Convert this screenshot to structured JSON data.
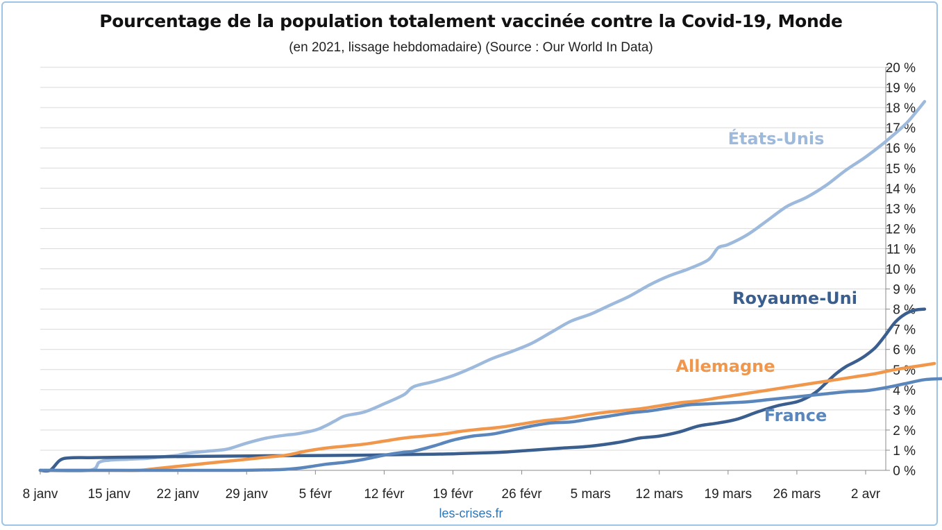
{
  "footer": "les-crises.fr",
  "chart_data": {
    "type": "line",
    "title": "Pourcentage de la population totalement vaccinée contre la Covid-19, Monde",
    "subtitle": "(en 2021, lissage hebdomadaire) (Source : Our World In Data)",
    "x_unit": "day of 2021",
    "x_ticks": [
      {
        "x": 8,
        "label": "8 janv"
      },
      {
        "x": 15,
        "label": "15 janv"
      },
      {
        "x": 22,
        "label": "22 janv"
      },
      {
        "x": 29,
        "label": "29 janv"
      },
      {
        "x": 36,
        "label": "5 févr"
      },
      {
        "x": 43,
        "label": "12 févr"
      },
      {
        "x": 50,
        "label": "19 févr"
      },
      {
        "x": 57,
        "label": "26 févr"
      },
      {
        "x": 64,
        "label": "5 mars"
      },
      {
        "x": 71,
        "label": "12 mars"
      },
      {
        "x": 78,
        "label": "19 mars"
      },
      {
        "x": 85,
        "label": "26 mars"
      },
      {
        "x": 92,
        "label": "2 avr"
      }
    ],
    "xlim": [
      8,
      94.5
    ],
    "ylim": [
      0,
      20
    ],
    "y_ticks": [
      0,
      1,
      2,
      3,
      4,
      5,
      6,
      7,
      8,
      9,
      10,
      11,
      12,
      13,
      14,
      15,
      16,
      17,
      18,
      19,
      20
    ],
    "y_tick_suffix": " %",
    "y_axis_side": "right",
    "grid": "horizontal",
    "series": [
      {
        "name": "États-Unis",
        "color": "#9DB9DC",
        "points": [
          [
            8,
            0
          ],
          [
            13,
            0
          ],
          [
            14,
            0.4
          ],
          [
            15,
            0.5
          ],
          [
            17,
            0.55
          ],
          [
            19,
            0.6
          ],
          [
            21,
            0.7
          ],
          [
            22,
            0.75
          ],
          [
            23,
            0.85
          ],
          [
            25,
            0.95
          ],
          [
            27,
            1.05
          ],
          [
            29,
            1.35
          ],
          [
            31,
            1.6
          ],
          [
            33,
            1.75
          ],
          [
            34,
            1.8
          ],
          [
            36,
            2.0
          ],
          [
            37,
            2.2
          ],
          [
            38,
            2.45
          ],
          [
            39,
            2.7
          ],
          [
            41,
            2.9
          ],
          [
            43,
            3.3
          ],
          [
            45,
            3.75
          ],
          [
            46,
            4.15
          ],
          [
            48,
            4.4
          ],
          [
            50,
            4.7
          ],
          [
            52,
            5.1
          ],
          [
            54,
            5.55
          ],
          [
            56,
            5.9
          ],
          [
            58,
            6.3
          ],
          [
            60,
            6.85
          ],
          [
            62,
            7.4
          ],
          [
            64,
            7.75
          ],
          [
            66,
            8.2
          ],
          [
            68,
            8.65
          ],
          [
            70,
            9.2
          ],
          [
            72,
            9.65
          ],
          [
            74,
            10.0
          ],
          [
            76,
            10.45
          ],
          [
            77,
            11.05
          ],
          [
            78,
            11.2
          ],
          [
            80,
            11.7
          ],
          [
            82,
            12.4
          ],
          [
            84,
            13.1
          ],
          [
            86,
            13.55
          ],
          [
            88,
            14.15
          ],
          [
            90,
            14.9
          ],
          [
            92,
            15.55
          ],
          [
            94,
            16.3
          ],
          [
            96,
            17.15
          ],
          [
            97,
            17.7
          ],
          [
            98,
            18.3
          ]
        ]
      },
      {
        "name": "Royaume-Uni",
        "color": "#3A5F8F",
        "points": [
          [
            8,
            0
          ],
          [
            9,
            0
          ],
          [
            10,
            0.5
          ],
          [
            11,
            0.62
          ],
          [
            13,
            0.63
          ],
          [
            16,
            0.65
          ],
          [
            20,
            0.67
          ],
          [
            25,
            0.7
          ],
          [
            30,
            0.72
          ],
          [
            35,
            0.73
          ],
          [
            40,
            0.75
          ],
          [
            45,
            0.78
          ],
          [
            48,
            0.8
          ],
          [
            50,
            0.82
          ],
          [
            52,
            0.85
          ],
          [
            55,
            0.9
          ],
          [
            58,
            1.0
          ],
          [
            61,
            1.1
          ],
          [
            64,
            1.2
          ],
          [
            67,
            1.4
          ],
          [
            69,
            1.6
          ],
          [
            71,
            1.7
          ],
          [
            73,
            1.9
          ],
          [
            75,
            2.2
          ],
          [
            77,
            2.35
          ],
          [
            79,
            2.55
          ],
          [
            81,
            2.9
          ],
          [
            83,
            3.2
          ],
          [
            85,
            3.4
          ],
          [
            86,
            3.6
          ],
          [
            87,
            3.9
          ],
          [
            88,
            4.35
          ],
          [
            89,
            4.8
          ],
          [
            90,
            5.15
          ],
          [
            91,
            5.4
          ],
          [
            92,
            5.7
          ],
          [
            93,
            6.1
          ],
          [
            94,
            6.7
          ],
          [
            95,
            7.35
          ],
          [
            96,
            7.75
          ],
          [
            97,
            7.95
          ],
          [
            98,
            8.0
          ]
        ]
      },
      {
        "name": "Allemagne",
        "color": "#F0974C",
        "points": [
          [
            8,
            0
          ],
          [
            15,
            0
          ],
          [
            18,
            0
          ],
          [
            20,
            0.1
          ],
          [
            22,
            0.2
          ],
          [
            25,
            0.35
          ],
          [
            28,
            0.5
          ],
          [
            31,
            0.65
          ],
          [
            33,
            0.75
          ],
          [
            35,
            0.95
          ],
          [
            37,
            1.1
          ],
          [
            39,
            1.2
          ],
          [
            41,
            1.3
          ],
          [
            43,
            1.45
          ],
          [
            45,
            1.6
          ],
          [
            47,
            1.7
          ],
          [
            49,
            1.8
          ],
          [
            51,
            1.95
          ],
          [
            53,
            2.05
          ],
          [
            55,
            2.15
          ],
          [
            57,
            2.3
          ],
          [
            59,
            2.45
          ],
          [
            61,
            2.55
          ],
          [
            63,
            2.7
          ],
          [
            65,
            2.85
          ],
          [
            67,
            2.95
          ],
          [
            69,
            3.05
          ],
          [
            71,
            3.2
          ],
          [
            73,
            3.35
          ],
          [
            75,
            3.45
          ],
          [
            77,
            3.6
          ],
          [
            79,
            3.75
          ],
          [
            81,
            3.9
          ],
          [
            83,
            4.05
          ],
          [
            85,
            4.2
          ],
          [
            87,
            4.35
          ],
          [
            89,
            4.5
          ],
          [
            91,
            4.65
          ],
          [
            93,
            4.8
          ],
          [
            95,
            5.0
          ],
          [
            97,
            5.15
          ],
          [
            99,
            5.3
          ]
        ]
      },
      {
        "name": "France",
        "color": "#5B86BB",
        "points": [
          [
            8,
            0
          ],
          [
            25,
            0
          ],
          [
            28,
            0
          ],
          [
            31,
            0.02
          ],
          [
            33,
            0.05
          ],
          [
            35,
            0.15
          ],
          [
            37,
            0.3
          ],
          [
            39,
            0.4
          ],
          [
            41,
            0.55
          ],
          [
            43,
            0.75
          ],
          [
            45,
            0.9
          ],
          [
            46,
            0.95
          ],
          [
            48,
            1.2
          ],
          [
            50,
            1.5
          ],
          [
            52,
            1.7
          ],
          [
            54,
            1.8
          ],
          [
            56,
            2.0
          ],
          [
            58,
            2.2
          ],
          [
            60,
            2.35
          ],
          [
            62,
            2.4
          ],
          [
            64,
            2.55
          ],
          [
            66,
            2.7
          ],
          [
            68,
            2.85
          ],
          [
            70,
            2.95
          ],
          [
            72,
            3.1
          ],
          [
            74,
            3.25
          ],
          [
            76,
            3.3
          ],
          [
            78,
            3.35
          ],
          [
            80,
            3.4
          ],
          [
            82,
            3.5
          ],
          [
            84,
            3.6
          ],
          [
            86,
            3.7
          ],
          [
            88,
            3.8
          ],
          [
            90,
            3.9
          ],
          [
            92,
            3.95
          ],
          [
            94,
            4.1
          ],
          [
            96,
            4.3
          ],
          [
            98,
            4.5
          ],
          [
            100,
            4.55
          ]
        ]
      }
    ],
    "annotations": [
      {
        "text": "États-Unis",
        "series": "États-Unis"
      },
      {
        "text": "Royaume-Uni",
        "series": "Royaume-Uni"
      },
      {
        "text": "Allemagne",
        "series": "Allemagne"
      },
      {
        "text": "France",
        "series": "France"
      }
    ]
  }
}
